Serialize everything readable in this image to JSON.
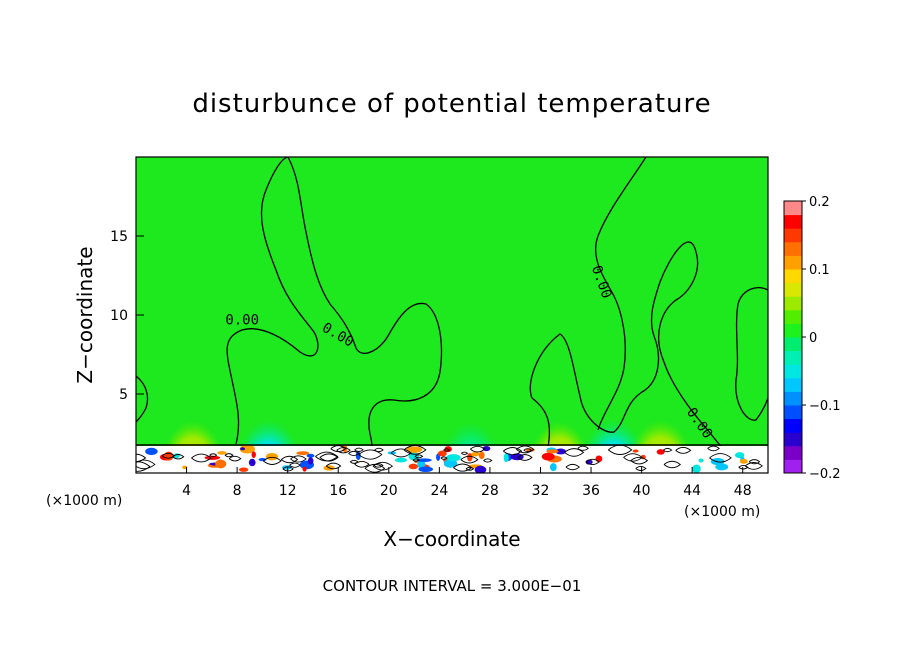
{
  "chart_data": {
    "type": "contour",
    "title": "disturbunce of potential temperature",
    "xlabel": "X−coordinate",
    "ylabel": "Z−coordinate",
    "x_unit_left": "(×1000 m)",
    "x_unit_right": "(×1000 m)",
    "footer": "CONTOUR INTERVAL = 3.000E−01",
    "xlim": [
      0,
      50
    ],
    "ylim": [
      0,
      20
    ],
    "x_ticks": [
      4,
      8,
      12,
      16,
      20,
      24,
      28,
      32,
      36,
      40,
      44,
      48
    ],
    "y_ticks": [
      5,
      10,
      15
    ],
    "contour_labels": [
      {
        "x": 8.4,
        "z": 9.4,
        "text": "0.00"
      },
      {
        "x": 15.8,
        "z": 8.5,
        "text": "0.00"
      },
      {
        "x": 36.5,
        "z": 12.0,
        "text": "0.00"
      },
      {
        "x": 44.3,
        "z": 3.0,
        "text": "0.00"
      }
    ],
    "colorbar": {
      "min": -0.2,
      "max": 0.2,
      "tick_labels": [
        "0.2",
        "0.1",
        "0",
        "−0.1",
        "−0.2"
      ],
      "colors": [
        "#a020f0",
        "#7a00c8",
        "#2a00d0",
        "#0000ff",
        "#0050ff",
        "#0090ff",
        "#00c8ff",
        "#00e6e0",
        "#00f0b4",
        "#00ee70",
        "#1ef21e",
        "#52ee00",
        "#9cea00",
        "#d8e800",
        "#ffd800",
        "#ffa000",
        "#ff7000",
        "#ff3800",
        "#ff0000",
        "#ff8888"
      ]
    },
    "plume_maxima": [
      {
        "x": 4.5,
        "value": 0.08
      },
      {
        "x": 10.5,
        "value": -0.1
      },
      {
        "x": 26.5,
        "value": -0.06
      },
      {
        "x": 33.5,
        "value": 0.07
      },
      {
        "x": 37.8,
        "value": -0.1
      },
      {
        "x": 41.5,
        "value": 0.09
      }
    ]
  }
}
